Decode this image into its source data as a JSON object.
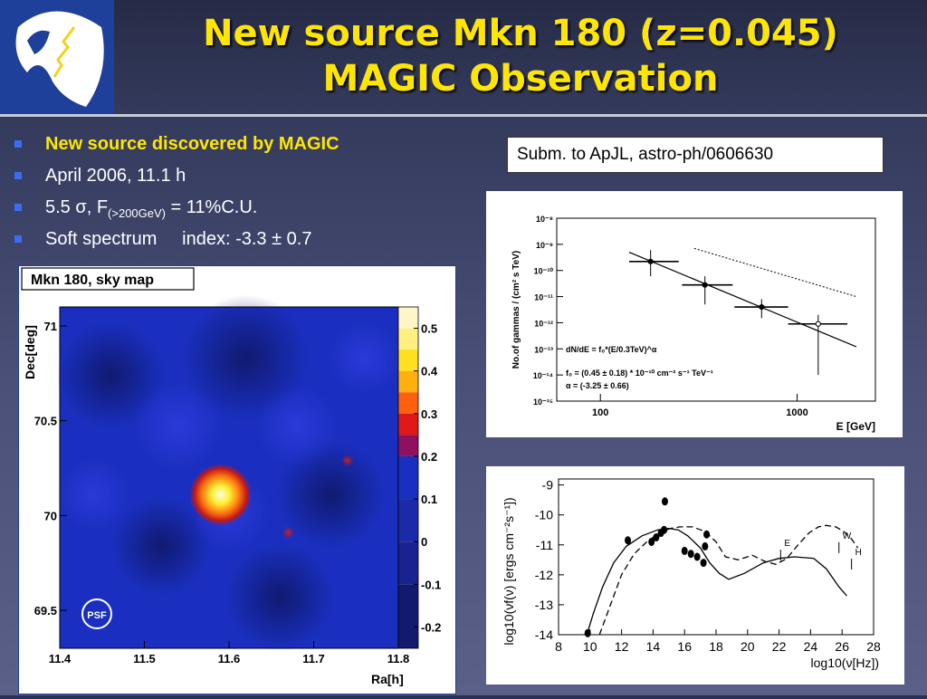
{
  "slide": {
    "title_line1": "New source Mkn 180 (z=0.045)",
    "title_line2": "MAGIC Observation",
    "colors": {
      "title": "#ffe600",
      "bullet_marker": "#3a6df5",
      "logo_bg": "#1e3f9a"
    }
  },
  "bullets": [
    {
      "text": "New source discovered by MAGIC"
    },
    {
      "text": "April 2006, 11.1 h"
    },
    {
      "pre": "5.5 ",
      "sigma": "σ",
      "mid": ", F",
      "sub": "(>200GeV)",
      "post": " = 11%C.U."
    },
    {
      "text": "Soft spectrum     index: -3.3 ± 0.7"
    }
  ],
  "submission_note": "Subm. to ApJL, astro-ph/0606630",
  "chart_data": [
    {
      "type": "heatmap",
      "title": "Mkn 180, sky map",
      "xlabel": "Ra[h]",
      "ylabel": "Dec[deg]",
      "x_ticks": [
        "11.4",
        "11.5",
        "11.6",
        "11.7",
        "11.8"
      ],
      "y_ticks": [
        "71",
        "70.5",
        "70",
        "69.5"
      ],
      "xlim": [
        11.4,
        11.8
      ],
      "ylim": [
        69.3,
        71.1
      ],
      "colorbar_ticks": [
        "0.5",
        "0.4",
        "0.3",
        "0.2",
        "0.1",
        "0",
        "-0.1",
        "-0.2"
      ],
      "colorbar_range": [
        -0.25,
        0.55
      ],
      "hotspots": [
        {
          "x": 11.59,
          "y": 70.11,
          "value": 0.55
        },
        {
          "x": 11.74,
          "y": 70.29,
          "value": 0.3
        },
        {
          "x": 11.67,
          "y": 69.91,
          "value": 0.27
        }
      ],
      "psf_label": "PSF"
    },
    {
      "type": "scatter",
      "ylabel": "No.of gammas / (cm² s TeV)",
      "xlabel": "E  [GeV]",
      "x_scale": "log",
      "y_scale": "log",
      "xlim": [
        60,
        2500
      ],
      "ylim": [
        1e-15,
        1e-08
      ],
      "x_ticks": [
        "100",
        "1000"
      ],
      "y_ticks": [
        "10⁻⁸",
        "10⁻⁹",
        "10⁻¹⁰",
        "10⁻¹¹",
        "10⁻¹²",
        "10⁻¹³",
        "10⁻¹⁴",
        "10⁻¹⁵"
      ],
      "series": [
        {
          "points": [
            {
              "x": 180,
              "y": 2.2e-10,
              "xlo": 140,
              "xhi": 250,
              "ylo": 6e-11,
              "yhi": 6e-10
            },
            {
              "x": 340,
              "y": 2.8e-11,
              "xlo": 260,
              "xhi": 470,
              "ylo": 5e-12,
              "yhi": 6e-11
            },
            {
              "x": 660,
              "y": 4e-12,
              "xlo": 480,
              "xhi": 900,
              "ylo": 1.5e-12,
              "yhi": 8e-12
            },
            {
              "x": 1280,
              "y": 9e-13,
              "xlo": 900,
              "xhi": 1800,
              "ylo": 1e-14,
              "yhi": 2e-12
            }
          ]
        }
      ],
      "fit_line": {
        "x": [
          140,
          2000
        ],
        "y": [
          5e-10,
          1.2e-13
        ]
      },
      "reference_line": {
        "x": [
          300,
          2000
        ],
        "y": [
          7e-10,
          1e-11
        ]
      },
      "annotations": [
        "dN/dE = f₀*(E/0.3TeV)^α",
        "f₀ = (0.45 ± 0.18) * 10⁻¹⁰    cm⁻² s⁻¹ TeV⁻¹",
        "α = (-3.25 ± 0.66)"
      ]
    },
    {
      "type": "line",
      "ylabel": "log10(νf(ν) [ergs cm⁻²s⁻¹])",
      "xlabel": "log10(ν[Hz])",
      "xlim": [
        8,
        28
      ],
      "ylim": [
        -14,
        -8.8
      ],
      "x_ticks": [
        "8",
        "10",
        "12",
        "14",
        "16",
        "18",
        "20",
        "22",
        "24",
        "26",
        "28"
      ],
      "y_ticks": [
        "-9",
        "-10",
        "-11",
        "-12",
        "-13",
        "-14"
      ],
      "series": [
        {
          "style": "solid",
          "x": [
            9.8,
            10.2,
            10.8,
            11.5,
            12.3,
            13.3,
            14.3,
            15.0,
            15.6,
            16.2,
            17.0,
            17.6,
            18.2,
            18.8,
            19.8,
            21.0,
            22.0,
            23.0,
            24.2,
            25.0,
            25.8,
            26.3
          ],
          "y": [
            -14.0,
            -13.3,
            -12.4,
            -11.6,
            -11.05,
            -10.7,
            -10.5,
            -10.45,
            -10.5,
            -10.7,
            -11.1,
            -11.6,
            -11.95,
            -12.15,
            -11.95,
            -11.6,
            -11.45,
            -11.4,
            -11.45,
            -11.8,
            -12.4,
            -12.7
          ]
        },
        {
          "style": "dashed",
          "x": [
            10.6,
            11.3,
            12.0,
            12.8,
            13.6,
            14.4,
            15.1,
            15.7,
            16.5,
            17.3,
            18.0,
            18.6,
            19.4,
            20.3,
            21.1,
            21.8,
            22.5,
            23.2,
            23.9,
            24.5,
            25.0,
            25.6,
            26.1,
            26.6,
            27.0
          ],
          "y": [
            -14.0,
            -13.0,
            -12.0,
            -11.3,
            -10.9,
            -10.6,
            -10.45,
            -10.4,
            -10.4,
            -10.55,
            -10.9,
            -11.4,
            -11.5,
            -11.35,
            -11.55,
            -11.65,
            -11.45,
            -11.0,
            -10.6,
            -10.4,
            -10.35,
            -10.4,
            -10.55,
            -10.8,
            -11.1
          ]
        }
      ],
      "points": [
        {
          "x": 9.85,
          "y": -13.95
        },
        {
          "x": 12.4,
          "y": -10.85
        },
        {
          "x": 13.9,
          "y": -10.9
        },
        {
          "x": 14.2,
          "y": -10.75
        },
        {
          "x": 14.5,
          "y": -10.6
        },
        {
          "x": 14.7,
          "y": -10.5
        },
        {
          "x": 14.75,
          "y": -9.55
        },
        {
          "x": 16.0,
          "y": -11.2
        },
        {
          "x": 16.4,
          "y": -11.3
        },
        {
          "x": 16.8,
          "y": -11.4
        },
        {
          "x": 17.2,
          "y": -11.6
        },
        {
          "x": 17.4,
          "y": -10.65
        },
        {
          "x": 17.3,
          "y": -11.05
        }
      ],
      "markers": [
        {
          "label": "E",
          "x": 22.1,
          "y": -11.1
        },
        {
          "label": "W",
          "x": 25.8,
          "y": -10.85
        },
        {
          "label": "H",
          "x": 26.6,
          "y": -11.4
        }
      ]
    }
  ]
}
